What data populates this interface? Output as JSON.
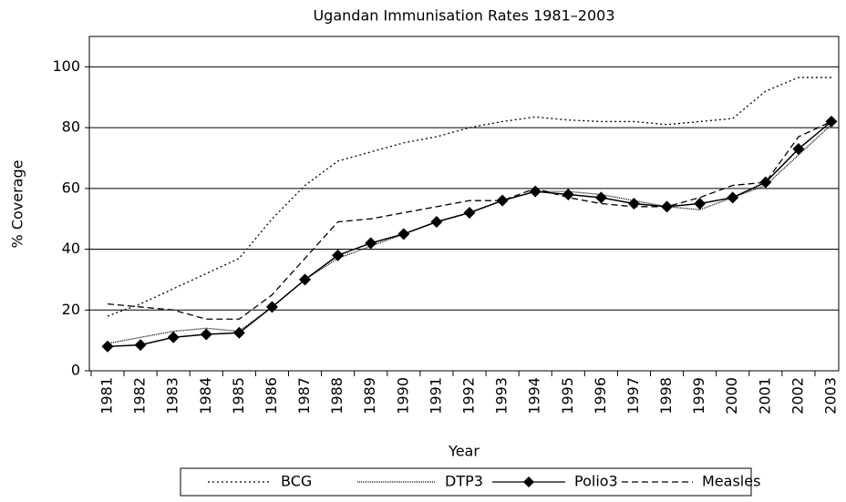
{
  "chart_data": {
    "type": "line",
    "title": "Ugandan Immunisation Rates 1981–2003",
    "x_label": "Year",
    "y_label": "% Coverage",
    "categories": [
      "1981",
      "1982",
      "1983",
      "1984",
      "1985",
      "1986",
      "1987",
      "1988",
      "1989",
      "1990",
      "1991",
      "1992",
      "1993",
      "1994",
      "1995",
      "1996",
      "1997",
      "1998",
      "1999",
      "2000",
      "2001",
      "2002",
      "2003"
    ],
    "series": [
      {
        "name": "BCG",
        "color": "#000000",
        "dash": "2,3",
        "marker": "none",
        "values": [
          18,
          22,
          27,
          32,
          37,
          50,
          61,
          69,
          72,
          75,
          77,
          80,
          82,
          83.5,
          82.5,
          82,
          82,
          81,
          82,
          83,
          92,
          96.5,
          96.5
        ]
      },
      {
        "name": "DTP3",
        "color": "#000000",
        "dash": "1,1",
        "marker": "none",
        "values": [
          9,
          11,
          13,
          14,
          13,
          21,
          30,
          37,
          41,
          45,
          49,
          52,
          56,
          59,
          59,
          58,
          56,
          54,
          53,
          57,
          61,
          71,
          81
        ]
      },
      {
        "name": "Polio3",
        "color": "#000000",
        "dash": "none",
        "marker": "diamond",
        "values": [
          8,
          8.5,
          11,
          12,
          12.5,
          21,
          30,
          38,
          42,
          45,
          49,
          52,
          56,
          59,
          58,
          57,
          55,
          54,
          55,
          57,
          62,
          73,
          82
        ]
      },
      {
        "name": "Measles",
        "color": "#000000",
        "dash": "7,4",
        "marker": "none",
        "values": [
          22,
          21,
          20,
          17,
          17,
          25,
          37,
          49,
          50,
          52,
          54,
          56,
          56,
          60,
          57,
          55,
          54,
          54,
          57,
          61,
          62,
          77,
          82
        ]
      }
    ],
    "ylim": [
      0,
      110
    ],
    "yticks": [
      0,
      20,
      40,
      60,
      80,
      100
    ],
    "grid": true,
    "legend": "bottom"
  }
}
